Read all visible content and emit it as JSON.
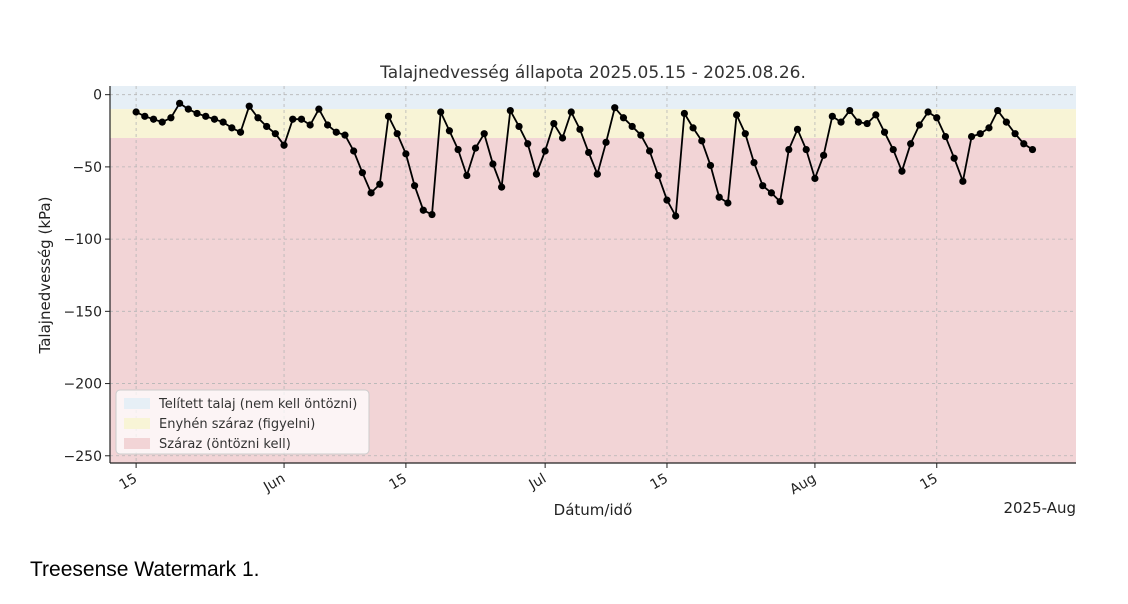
{
  "chart_data": {
    "type": "line",
    "title": "Talajnedvesség állapota 2025.05.15 - 2025.08.26.",
    "xlabel": "Dátum/idő",
    "ylabel": "Talajnedvesség (kPa)",
    "ylim": [
      -255,
      6
    ],
    "xlim": [
      "2025-05-12",
      "2025-08-31"
    ],
    "yticks": [
      0,
      -50,
      -100,
      -150,
      -200,
      -250
    ],
    "ytick_labels": [
      "0",
      "−50",
      "−100",
      "−150",
      "−200",
      "−250"
    ],
    "xticks": [
      {
        "date": "2025-05-15",
        "label": "15"
      },
      {
        "date": "2025-06-01",
        "label": "Jun"
      },
      {
        "date": "2025-06-15",
        "label": "15"
      },
      {
        "date": "2025-07-01",
        "label": "Jul"
      },
      {
        "date": "2025-07-15",
        "label": "15"
      },
      {
        "date": "2025-08-01",
        "label": "Aug"
      },
      {
        "date": "2025-08-15",
        "label": "15"
      }
    ],
    "offset_label": "2025-Aug",
    "grid": true,
    "legend_position": "lower-left",
    "bands": [
      {
        "name": "Telített talaj (nem kell öntözni)",
        "from": 0,
        "to": -10,
        "color": "#e6eff6"
      },
      {
        "name": "Enyhén száraz (figyelni)",
        "from": -10,
        "to": -30,
        "color": "#f8f4d6"
      },
      {
        "name": "Száraz (öntözni kell)",
        "from": -30,
        "to": -255,
        "color": "#f2d4d6"
      }
    ],
    "series": [
      {
        "color": "#000000",
        "x": [
          "2025-05-15",
          "2025-05-16",
          "2025-05-17",
          "2025-05-18",
          "2025-05-19",
          "2025-05-20",
          "2025-05-21",
          "2025-05-22",
          "2025-05-23",
          "2025-05-24",
          "2025-05-25",
          "2025-05-26",
          "2025-05-27",
          "2025-05-28",
          "2025-05-29",
          "2025-05-30",
          "2025-05-31",
          "2025-06-01",
          "2025-06-02",
          "2025-06-03",
          "2025-06-04",
          "2025-06-05",
          "2025-06-06",
          "2025-06-07",
          "2025-06-08",
          "2025-06-09",
          "2025-06-10",
          "2025-06-11",
          "2025-06-12",
          "2025-06-13",
          "2025-06-14",
          "2025-06-15",
          "2025-06-16",
          "2025-06-17",
          "2025-06-18",
          "2025-06-19",
          "2025-06-20",
          "2025-06-21",
          "2025-06-22",
          "2025-06-23",
          "2025-06-24",
          "2025-06-25",
          "2025-06-26",
          "2025-06-27",
          "2025-06-28",
          "2025-06-29",
          "2025-06-30",
          "2025-07-01",
          "2025-07-02",
          "2025-07-03",
          "2025-07-04",
          "2025-07-05",
          "2025-07-06",
          "2025-07-07",
          "2025-07-08",
          "2025-07-09",
          "2025-07-10",
          "2025-07-11",
          "2025-07-12",
          "2025-07-13",
          "2025-07-14",
          "2025-07-15",
          "2025-07-16",
          "2025-07-17",
          "2025-07-18",
          "2025-07-19",
          "2025-07-20",
          "2025-07-21",
          "2025-07-22",
          "2025-07-23",
          "2025-07-24",
          "2025-07-25",
          "2025-07-26",
          "2025-07-27",
          "2025-07-28",
          "2025-07-29",
          "2025-07-30",
          "2025-07-31",
          "2025-08-01",
          "2025-08-02",
          "2025-08-03",
          "2025-08-04",
          "2025-08-05",
          "2025-08-06",
          "2025-08-07",
          "2025-08-08",
          "2025-08-09",
          "2025-08-10",
          "2025-08-11",
          "2025-08-12",
          "2025-08-13",
          "2025-08-14",
          "2025-08-15",
          "2025-08-16",
          "2025-08-17",
          "2025-08-18",
          "2025-08-19",
          "2025-08-20",
          "2025-08-21",
          "2025-08-22",
          "2025-08-23",
          "2025-08-24",
          "2025-08-25",
          "2025-08-26"
        ],
        "y": [
          -12,
          -15,
          -17,
          -19,
          -16,
          -6,
          -10,
          -13,
          -15,
          -17,
          -19,
          -23,
          -26,
          -8,
          -16,
          -22,
          -27,
          -35,
          -17,
          -17,
          -21,
          -10,
          -21,
          -26,
          -28,
          -39,
          -54,
          -68,
          -62,
          -15,
          -27,
          -41,
          -63,
          -80,
          -83,
          -12,
          -25,
          -38,
          -56,
          -37,
          -27,
          -48,
          -64,
          -11,
          -22,
          -34,
          -55,
          -39,
          -20,
          -30,
          -12,
          -24,
          -40,
          -55,
          -33,
          -9,
          -16,
          -22,
          -28,
          -39,
          -56,
          -73,
          -84,
          -13,
          -23,
          -32,
          -49,
          -71,
          -75,
          -14,
          -27,
          -47,
          -63,
          -68,
          -74,
          -38,
          -24,
          -38,
          -58,
          -42,
          -15,
          -19,
          -11,
          -19,
          -20,
          -14,
          -26,
          -38,
          -53,
          -34,
          -21,
          -12,
          -16,
          -29,
          -44,
          -60,
          -29,
          -27,
          -23,
          -11,
          -19,
          -27,
          -34,
          -38
        ]
      }
    ]
  },
  "watermark": "Treesense Watermark 1."
}
